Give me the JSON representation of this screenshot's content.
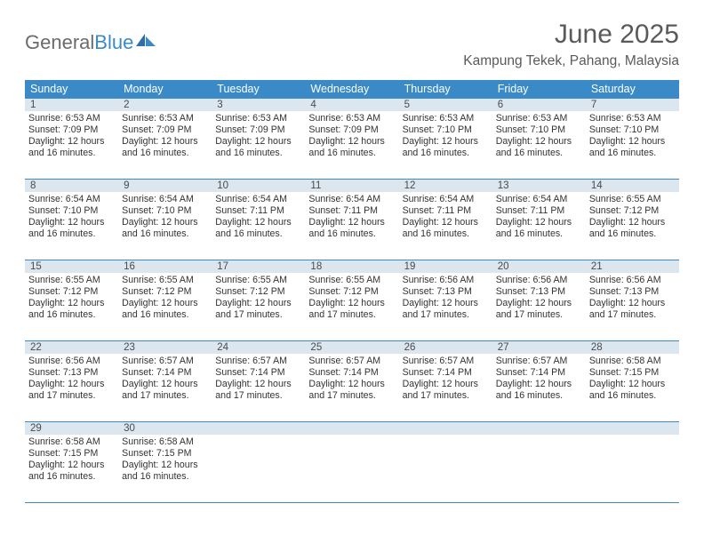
{
  "logo": {
    "general": "General",
    "blue": "Blue"
  },
  "title": {
    "month": "June 2025",
    "location": "Kampung Tekek, Pahang, Malaysia"
  },
  "colors": {
    "header_bg": "#3a8ac8",
    "daynum_bg": "#dbe6ef",
    "border": "#3a8ac8",
    "text": "#333333",
    "title_text": "#5a5a5a",
    "logo_gray": "#6b6b6b",
    "logo_blue": "#3a8ac8"
  },
  "weekdays": [
    "Sunday",
    "Monday",
    "Tuesday",
    "Wednesday",
    "Thursday",
    "Friday",
    "Saturday"
  ],
  "weeks": [
    [
      {
        "day": "1",
        "sunrise": "6:53 AM",
        "sunset": "7:09 PM",
        "daylight": "12 hours and 16 minutes."
      },
      {
        "day": "2",
        "sunrise": "6:53 AM",
        "sunset": "7:09 PM",
        "daylight": "12 hours and 16 minutes."
      },
      {
        "day": "3",
        "sunrise": "6:53 AM",
        "sunset": "7:09 PM",
        "daylight": "12 hours and 16 minutes."
      },
      {
        "day": "4",
        "sunrise": "6:53 AM",
        "sunset": "7:09 PM",
        "daylight": "12 hours and 16 minutes."
      },
      {
        "day": "5",
        "sunrise": "6:53 AM",
        "sunset": "7:10 PM",
        "daylight": "12 hours and 16 minutes."
      },
      {
        "day": "6",
        "sunrise": "6:53 AM",
        "sunset": "7:10 PM",
        "daylight": "12 hours and 16 minutes."
      },
      {
        "day": "7",
        "sunrise": "6:53 AM",
        "sunset": "7:10 PM",
        "daylight": "12 hours and 16 minutes."
      }
    ],
    [
      {
        "day": "8",
        "sunrise": "6:54 AM",
        "sunset": "7:10 PM",
        "daylight": "12 hours and 16 minutes."
      },
      {
        "day": "9",
        "sunrise": "6:54 AM",
        "sunset": "7:10 PM",
        "daylight": "12 hours and 16 minutes."
      },
      {
        "day": "10",
        "sunrise": "6:54 AM",
        "sunset": "7:11 PM",
        "daylight": "12 hours and 16 minutes."
      },
      {
        "day": "11",
        "sunrise": "6:54 AM",
        "sunset": "7:11 PM",
        "daylight": "12 hours and 16 minutes."
      },
      {
        "day": "12",
        "sunrise": "6:54 AM",
        "sunset": "7:11 PM",
        "daylight": "12 hours and 16 minutes."
      },
      {
        "day": "13",
        "sunrise": "6:54 AM",
        "sunset": "7:11 PM",
        "daylight": "12 hours and 16 minutes."
      },
      {
        "day": "14",
        "sunrise": "6:55 AM",
        "sunset": "7:12 PM",
        "daylight": "12 hours and 16 minutes."
      }
    ],
    [
      {
        "day": "15",
        "sunrise": "6:55 AM",
        "sunset": "7:12 PM",
        "daylight": "12 hours and 16 minutes."
      },
      {
        "day": "16",
        "sunrise": "6:55 AM",
        "sunset": "7:12 PM",
        "daylight": "12 hours and 16 minutes."
      },
      {
        "day": "17",
        "sunrise": "6:55 AM",
        "sunset": "7:12 PM",
        "daylight": "12 hours and 17 minutes."
      },
      {
        "day": "18",
        "sunrise": "6:55 AM",
        "sunset": "7:12 PM",
        "daylight": "12 hours and 17 minutes."
      },
      {
        "day": "19",
        "sunrise": "6:56 AM",
        "sunset": "7:13 PM",
        "daylight": "12 hours and 17 minutes."
      },
      {
        "day": "20",
        "sunrise": "6:56 AM",
        "sunset": "7:13 PM",
        "daylight": "12 hours and 17 minutes."
      },
      {
        "day": "21",
        "sunrise": "6:56 AM",
        "sunset": "7:13 PM",
        "daylight": "12 hours and 17 minutes."
      }
    ],
    [
      {
        "day": "22",
        "sunrise": "6:56 AM",
        "sunset": "7:13 PM",
        "daylight": "12 hours and 17 minutes."
      },
      {
        "day": "23",
        "sunrise": "6:57 AM",
        "sunset": "7:14 PM",
        "daylight": "12 hours and 17 minutes."
      },
      {
        "day": "24",
        "sunrise": "6:57 AM",
        "sunset": "7:14 PM",
        "daylight": "12 hours and 17 minutes."
      },
      {
        "day": "25",
        "sunrise": "6:57 AM",
        "sunset": "7:14 PM",
        "daylight": "12 hours and 17 minutes."
      },
      {
        "day": "26",
        "sunrise": "6:57 AM",
        "sunset": "7:14 PM",
        "daylight": "12 hours and 17 minutes."
      },
      {
        "day": "27",
        "sunrise": "6:57 AM",
        "sunset": "7:14 PM",
        "daylight": "12 hours and 16 minutes."
      },
      {
        "day": "28",
        "sunrise": "6:58 AM",
        "sunset": "7:15 PM",
        "daylight": "12 hours and 16 minutes."
      }
    ],
    [
      {
        "day": "29",
        "sunrise": "6:58 AM",
        "sunset": "7:15 PM",
        "daylight": "12 hours and 16 minutes."
      },
      {
        "day": "30",
        "sunrise": "6:58 AM",
        "sunset": "7:15 PM",
        "daylight": "12 hours and 16 minutes."
      },
      null,
      null,
      null,
      null,
      null
    ]
  ],
  "labels": {
    "sunrise_prefix": "Sunrise: ",
    "sunset_prefix": "Sunset: ",
    "daylight_prefix": "Daylight: "
  }
}
